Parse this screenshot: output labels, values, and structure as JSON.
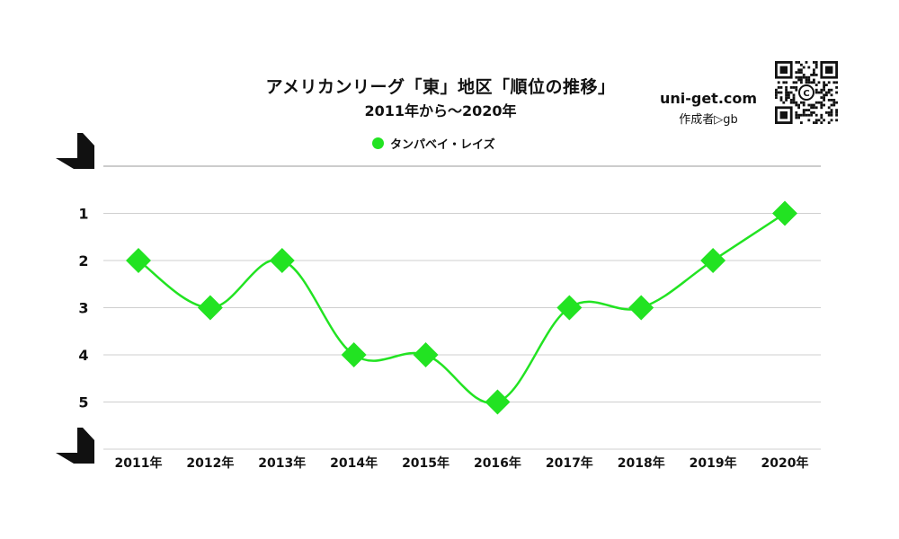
{
  "title": "アメリカンリーグ「東」地区「順位の推移」",
  "subtitle": "2011年から～2020年",
  "site": "uni-get.com",
  "credit": "作成者▷gb",
  "qr_logo_letter": "C",
  "colors": {
    "series": "#22e322",
    "grid": "#cfcfcf",
    "top_line": "#9a9a9a",
    "text": "#111111"
  },
  "chart_data": {
    "type": "line",
    "title": "アメリカンリーグ「東」地区「順位の推移」",
    "subtitle": "2011年から～2020年",
    "categories": [
      "2011年",
      "2012年",
      "2013年",
      "2014年",
      "2015年",
      "2016年",
      "2017年",
      "2018年",
      "2019年",
      "2020年"
    ],
    "series": [
      {
        "name": "タンパベイ・レイズ",
        "values": [
          2,
          3,
          2,
          4,
          4,
          5,
          3,
          3,
          2,
          1
        ],
        "color": "#22e322",
        "marker": "diamond"
      }
    ],
    "y_ticks": [
      "1",
      "2",
      "3",
      "4",
      "5"
    ],
    "ylim": [
      0,
      6
    ],
    "y_reversed": true,
    "grid": true,
    "legend": "top-center",
    "xlabel": "",
    "ylabel": ""
  }
}
